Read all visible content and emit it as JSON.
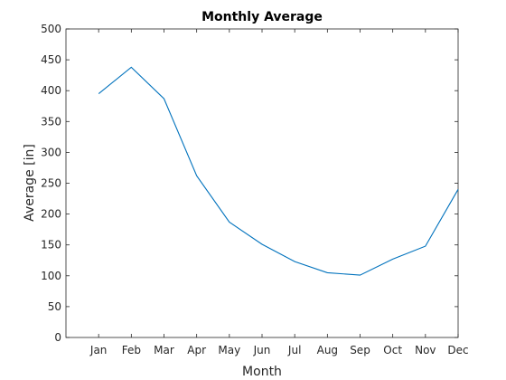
{
  "chart_data": {
    "type": "line",
    "title": "Monthly Average",
    "xlabel": "Month",
    "ylabel": "Average [in]",
    "categories": [
      "Jan",
      "Feb",
      "Mar",
      "Apr",
      "May",
      "Jun",
      "Jul",
      "Aug",
      "Sep",
      "Oct",
      "Nov",
      "Dec"
    ],
    "series": [
      {
        "values": [
          395,
          438,
          387,
          262,
          187,
          151,
          123,
          105,
          101,
          127,
          148,
          240
        ],
        "color": "#0072bd"
      }
    ],
    "ylim": [
      0,
      500
    ],
    "yticks": [
      0,
      50,
      100,
      150,
      200,
      250,
      300,
      350,
      400,
      450,
      500
    ],
    "x_range": [
      0,
      12
    ],
    "grid": false,
    "legend": "none"
  }
}
